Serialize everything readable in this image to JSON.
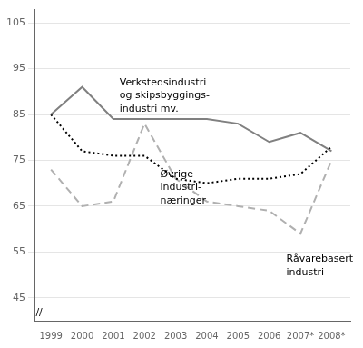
{
  "chart_data": {
    "type": "line",
    "x": [
      1999,
      2000,
      2001,
      2002,
      2003,
      2004,
      2005,
      2006,
      2007,
      2008
    ],
    "xlim": [
      1998.5,
      2008.6
    ],
    "xticks": [
      1999,
      2000,
      2001,
      2002,
      2003,
      2004,
      2005,
      2006,
      {
        "value": 2007,
        "label": "2007*"
      },
      {
        "value": 2008,
        "label": "2008*"
      }
    ],
    "ylim": [
      40,
      108
    ],
    "yticks": [
      45,
      55,
      65,
      75,
      85,
      95,
      105
    ],
    "grid": "y",
    "series": [
      {
        "color": "#808080",
        "line_style": "solid",
        "values": [
          85,
          91,
          84,
          84,
          84,
          84,
          83,
          79,
          81,
          77
        ]
      },
      {
        "color": "#000000",
        "line_style": "dotted",
        "values": [
          85,
          77,
          76,
          76,
          71,
          70,
          71,
          71,
          72,
          78
        ]
      },
      {
        "color": "#b0b0b0",
        "line_style": "dashed",
        "values": [
          73,
          65,
          66,
          83,
          71,
          66,
          65,
          64,
          59,
          75
        ]
      }
    ],
    "annotations": [
      {
        "text": "Verkstedsindustri\nog skipsbyggings-\nindustri mv.",
        "x": 2001.2,
        "y": 93
      },
      {
        "text": "Øvrige\nindustri-\nnæringer",
        "x": 2002.5,
        "y": 73
      },
      {
        "text": "Råvarebasert\nindustri",
        "x": 2006.55,
        "y": 54.5
      },
      {
        "text": "//",
        "x": 1998.62,
        "y": 41.8
      }
    ]
  }
}
